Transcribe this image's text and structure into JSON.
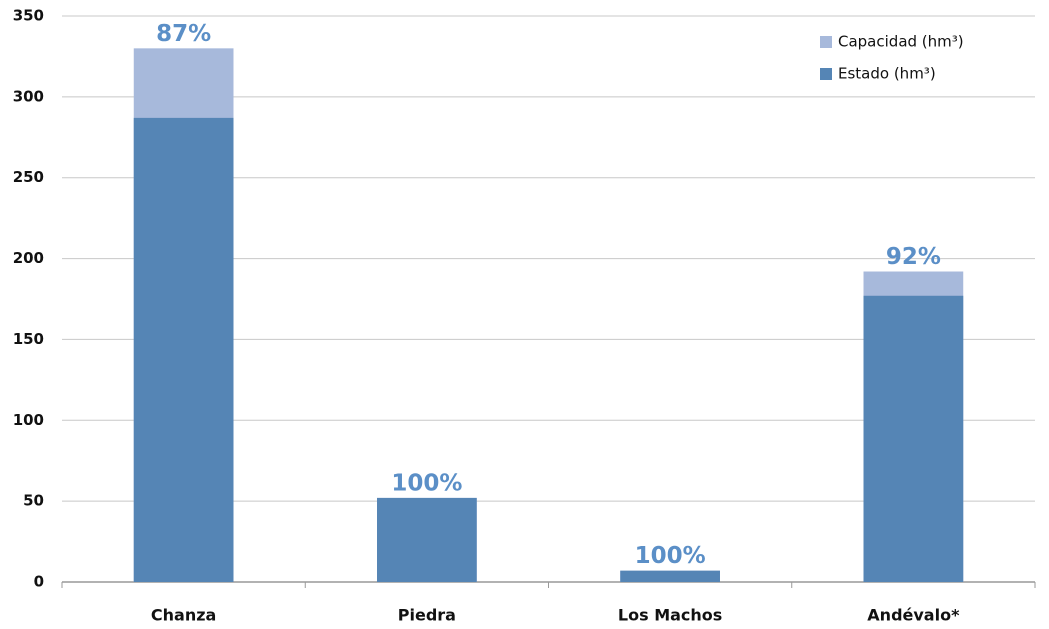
{
  "chart_data": {
    "type": "overlap_bar",
    "categories": [
      "Chanza",
      "Piedra",
      "Los Machos",
      "Andévalo*"
    ],
    "series": [
      {
        "name": "Capacidad (hm³)",
        "color": "#a7b9db",
        "values": [
          330,
          52,
          7,
          192
        ]
      },
      {
        "name": "Estado (hm³)",
        "color": "#5585b5",
        "values": [
          287,
          52,
          7,
          177
        ]
      }
    ],
    "annotations": [
      "87%",
      "100%",
      "100%",
      "92%"
    ],
    "ylim": [
      0,
      350
    ],
    "yticks": [
      0,
      50,
      100,
      150,
      200,
      250,
      300,
      350
    ],
    "grid": true,
    "legend": "upper-right"
  }
}
